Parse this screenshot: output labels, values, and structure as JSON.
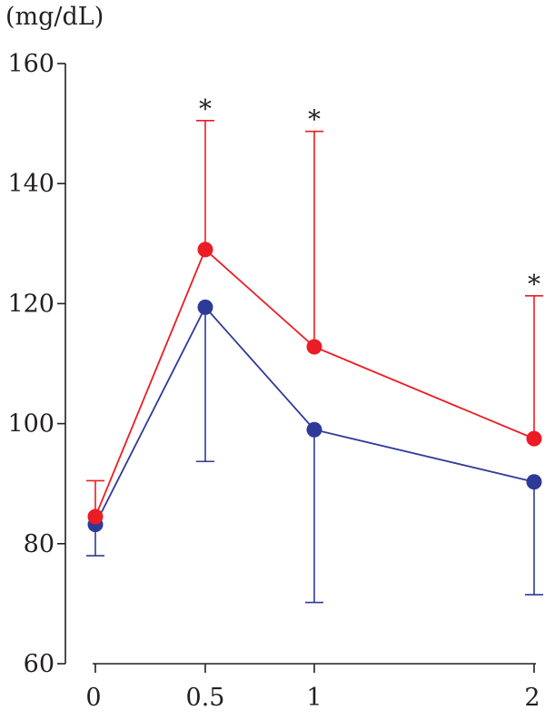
{
  "chart_data": {
    "type": "line",
    "ylabel": "(mg/dL)",
    "xlabel": "",
    "x": [
      0,
      0.5,
      1,
      2
    ],
    "x_tick_labels": [
      "0",
      "0.5",
      "1",
      "2"
    ],
    "ylim": [
      60,
      160
    ],
    "y_ticks": [
      60,
      80,
      100,
      120,
      140,
      160
    ],
    "y_tick_labels": [
      "60",
      "80",
      "100",
      "120",
      "140",
      "160"
    ],
    "series": [
      {
        "color": "#ec1c24",
        "values": [
          84.5,
          129,
          112.8,
          97.5
        ],
        "error_upper": [
          90.5,
          150.5,
          148.7,
          121.3
        ],
        "error_direction": "up"
      },
      {
        "color": "#2e3a97",
        "values": [
          83.2,
          119.4,
          99,
          90.3
        ],
        "error_lower": [
          78,
          93.7,
          70.2,
          71.5
        ],
        "error_direction": "down"
      }
    ],
    "annotations": [
      {
        "text": "*",
        "x": 0.5,
        "y": 154
      },
      {
        "text": "*",
        "x": 1,
        "y": 152.3
      },
      {
        "text": "*",
        "x": 2,
        "y": 124.8
      }
    ],
    "grid": false,
    "legend": "none"
  }
}
